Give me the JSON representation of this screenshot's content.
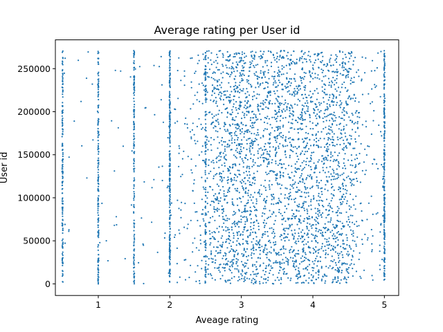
{
  "chart_data": {
    "type": "scatter",
    "title": "Average rating per User id",
    "xlabel": "Aveage rating",
    "ylabel": "User id",
    "xlim": [
      0.4,
      5.2
    ],
    "ylim": [
      -13500,
      283500
    ],
    "xticks": [
      1,
      2,
      3,
      4,
      5
    ],
    "xtick_labels": [
      "1",
      "2",
      "3",
      "4",
      "5"
    ],
    "yticks": [
      0,
      50000,
      100000,
      150000,
      200000,
      250000
    ],
    "ytick_labels": [
      "0",
      "50000",
      "100000",
      "150000",
      "200000",
      "250000"
    ],
    "grid": false,
    "legend": "none",
    "marker_color": "#1f77b4",
    "point_density": {
      "x": [
        0.5,
        0.75,
        1.0,
        1.25,
        1.5,
        1.75,
        2.0,
        2.25,
        2.5,
        2.75,
        3.0,
        3.25,
        3.5,
        3.75,
        4.0,
        4.25,
        4.5,
        4.75,
        5.0
      ],
      "relative_density": [
        0.12,
        0.02,
        0.12,
        0.04,
        0.12,
        0.08,
        0.35,
        0.3,
        0.7,
        1.0,
        1.0,
        1.0,
        1.0,
        1.0,
        1.0,
        1.0,
        0.9,
        0.35,
        0.45
      ]
    },
    "notes_on_distribution": "columns of points at discrete averages 0.5, 1.0, 1.5, 2.0, 2.5 and 5.0; dense band between about 2.5 and 4.7"
  }
}
